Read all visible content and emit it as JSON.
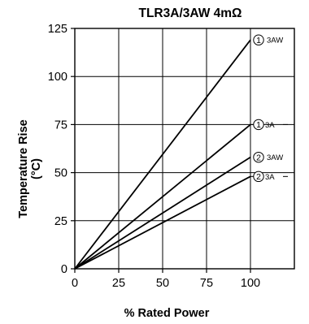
{
  "chart_data": {
    "type": "line",
    "title": "TLR3A/3AW 4mΩ",
    "xlabel": "% Rated Power",
    "ylabel": [
      "Temperature Rise",
      "(°C)"
    ],
    "xlim": [
      0,
      125
    ],
    "ylim": [
      0,
      125
    ],
    "x_ticks": [
      0,
      25,
      50,
      75,
      100
    ],
    "y_ticks": [
      0,
      25,
      50,
      75,
      100,
      125
    ],
    "x_tick_labels": [
      "0",
      "25",
      "50",
      "75",
      "100"
    ],
    "y_tick_labels": [
      "0",
      "25",
      "50",
      "75",
      "100",
      "125"
    ],
    "grid": true,
    "series": [
      {
        "id": "s1-3aw",
        "num": "1",
        "name": "3AW",
        "x": [
          0,
          100
        ],
        "y": [
          0,
          119
        ]
      },
      {
        "id": "s1-3a",
        "num": "1",
        "name": "3A",
        "x": [
          0,
          100
        ],
        "y": [
          0,
          75
        ]
      },
      {
        "id": "s2-3aw",
        "num": "2",
        "name": "3AW",
        "x": [
          0,
          100
        ],
        "y": [
          0,
          58
        ]
      },
      {
        "id": "s2-3a",
        "num": "2",
        "name": "3A",
        "x": [
          0,
          100
        ],
        "y": [
          0,
          48
        ]
      }
    ],
    "line_color": "#000000",
    "grid_color": "#000000"
  }
}
